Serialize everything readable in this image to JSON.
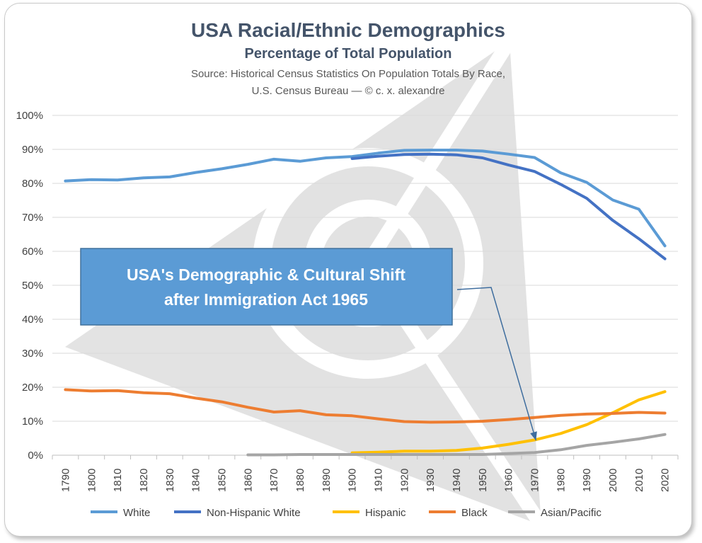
{
  "chart_data": {
    "type": "line",
    "title": "USA Racial/Ethnic Demographics",
    "subtitle": "Percentage of Total Population",
    "source_lines": [
      "Source: Historical Census Statistics On Population Totals By Race,",
      "U.S. Census Bureau — © c. x. alexandre"
    ],
    "x": [
      1790,
      1800,
      1810,
      1820,
      1830,
      1840,
      1850,
      1860,
      1870,
      1880,
      1890,
      1900,
      1910,
      1920,
      1930,
      1940,
      1950,
      1960,
      1970,
      1980,
      1990,
      2000,
      2010,
      2020
    ],
    "x_tick_labels": [
      "1790",
      "1800",
      "1810",
      "1820",
      "1830",
      "1840",
      "1850",
      "1860",
      "1870",
      "1880",
      "1890",
      "1900",
      "1910",
      "1920",
      "1930",
      "1940",
      "1950",
      "1960",
      "1970",
      "1980",
      "1990",
      "2000",
      "2010",
      "2020"
    ],
    "y_tick_labels": [
      "0%",
      "10%",
      "20%",
      "30%",
      "40%",
      "50%",
      "60%",
      "70%",
      "80%",
      "90%",
      "100%"
    ],
    "ylim": [
      0,
      100
    ],
    "grid": true,
    "legend_position": "bottom",
    "series": [
      {
        "name": "White",
        "color": "#5b9bd5",
        "values": [
          80.7,
          81.1,
          81.0,
          81.6,
          81.9,
          83.2,
          84.3,
          85.6,
          87.1,
          86.5,
          87.5,
          87.9,
          88.9,
          89.7,
          89.8,
          89.8,
          89.5,
          88.6,
          87.6,
          83.1,
          80.3,
          75.1,
          72.4,
          61.6
        ]
      },
      {
        "name": "Non-Hispanic White",
        "color": "#4472c4",
        "values": [
          null,
          null,
          null,
          null,
          null,
          null,
          null,
          null,
          null,
          null,
          null,
          87.3,
          88.0,
          88.5,
          88.6,
          88.4,
          87.5,
          85.4,
          83.5,
          79.7,
          75.6,
          69.1,
          63.7,
          57.8
        ]
      },
      {
        "name": "Hispanic",
        "color": "#ffc000",
        "values": [
          null,
          null,
          null,
          null,
          null,
          null,
          null,
          null,
          null,
          null,
          null,
          0.7,
          0.9,
          1.2,
          1.2,
          1.4,
          2.1,
          3.2,
          4.5,
          6.4,
          9.0,
          12.5,
          16.3,
          18.7
        ]
      },
      {
        "name": "Black",
        "color": "#ed7d31",
        "values": [
          19.3,
          18.9,
          19.0,
          18.4,
          18.1,
          16.8,
          15.7,
          14.1,
          12.7,
          13.1,
          11.9,
          11.6,
          10.7,
          9.9,
          9.7,
          9.8,
          10.0,
          10.5,
          11.1,
          11.7,
          12.1,
          12.3,
          12.6,
          12.4
        ]
      },
      {
        "name": "Asian/Pacific",
        "color": "#a5a5a5",
        "values": [
          null,
          null,
          null,
          null,
          null,
          null,
          null,
          0.1,
          0.1,
          0.2,
          0.2,
          0.2,
          0.2,
          0.2,
          0.2,
          0.2,
          0.2,
          0.5,
          0.8,
          1.6,
          2.9,
          3.8,
          4.8,
          6.1
        ]
      }
    ],
    "annotation": {
      "text_lines": [
        "USA's Demographic & Cultural Shift",
        "after Immigration Act 1965"
      ],
      "box_color": "#5b9bd5",
      "arrow_target": {
        "x": 1970,
        "y": 6
      }
    }
  }
}
